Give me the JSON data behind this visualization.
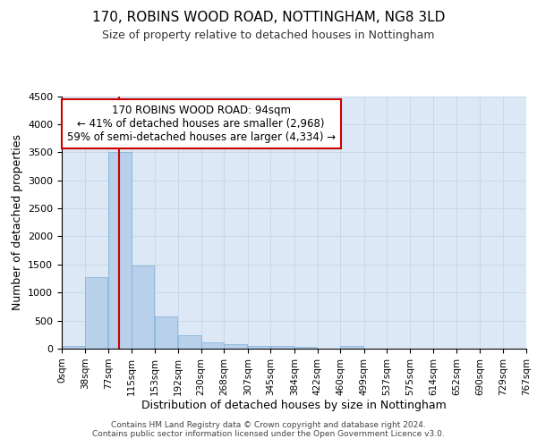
{
  "title": "170, ROBINS WOOD ROAD, NOTTINGHAM, NG8 3LD",
  "subtitle": "Size of property relative to detached houses in Nottingham",
  "xlabel": "Distribution of detached houses by size in Nottingham",
  "ylabel": "Number of detached properties",
  "bar_color": "#b8d0ea",
  "bar_edge_color": "#7aafd4",
  "grid_color": "#c8d8e8",
  "background_color": "#dce8f5",
  "red_line_x": 94,
  "annotation_line1": "170 ROBINS WOOD ROAD: 94sqm",
  "annotation_line2": "← 41% of detached houses are smaller (2,968)",
  "annotation_line3": "59% of semi-detached houses are larger (4,334) →",
  "annotation_box_color": "#ffffff",
  "annotation_box_edge_color": "#cc0000",
  "footer_text": "Contains HM Land Registry data © Crown copyright and database right 2024.\nContains public sector information licensed under the Open Government Licence v3.0.",
  "bin_edges": [
    0,
    38,
    77,
    115,
    153,
    192,
    230,
    268,
    307,
    345,
    384,
    422,
    460,
    499,
    537,
    575,
    614,
    652,
    690,
    729,
    767
  ],
  "bin_labels": [
    "0sqm",
    "38sqm",
    "77sqm",
    "115sqm",
    "153sqm",
    "192sqm",
    "230sqm",
    "268sqm",
    "307sqm",
    "345sqm",
    "384sqm",
    "422sqm",
    "460sqm",
    "499sqm",
    "537sqm",
    "575sqm",
    "614sqm",
    "652sqm",
    "690sqm",
    "729sqm",
    "767sqm"
  ],
  "counts": [
    45,
    1280,
    3500,
    1480,
    575,
    240,
    115,
    80,
    50,
    40,
    35,
    0,
    40,
    0,
    0,
    0,
    0,
    0,
    0,
    0
  ],
  "ylim": [
    0,
    4500
  ],
  "yticks": [
    0,
    500,
    1000,
    1500,
    2000,
    2500,
    3000,
    3500,
    4000,
    4500
  ]
}
